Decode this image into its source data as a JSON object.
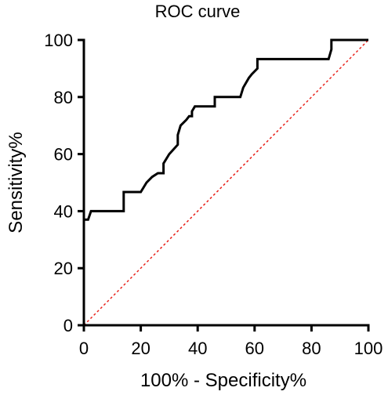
{
  "chart_data": {
    "type": "line",
    "title": "ROC curve",
    "xlabel": "100% - Specificity%",
    "ylabel": "Sensitivity%",
    "xlim": [
      0,
      100
    ],
    "ylim": [
      0,
      100
    ],
    "xticks": [
      0,
      20,
      40,
      60,
      80,
      100
    ],
    "yticks": [
      0,
      20,
      40,
      60,
      80,
      100
    ],
    "grid": false,
    "series": [
      {
        "color": "#000000",
        "style": "solid",
        "x": [
          0,
          0,
          1.5,
          2.5,
          2.5,
          14,
          14,
          20,
          22,
          24,
          26,
          28,
          28,
          30,
          33,
          33,
          34,
          36,
          37,
          38,
          38,
          39,
          39,
          46,
          46,
          55,
          56,
          56,
          58,
          59,
          61,
          61,
          86,
          87,
          87,
          100
        ],
        "y": [
          0,
          37,
          37,
          40,
          40,
          40,
          46.7,
          46.7,
          50,
          52,
          53.3,
          53.3,
          56.7,
          60,
          63.3,
          66.7,
          70,
          72,
          73.3,
          73.3,
          75,
          76.7,
          76.7,
          76.7,
          80,
          80,
          83.3,
          83.3,
          86.7,
          88,
          90,
          93.3,
          93.3,
          96.7,
          100,
          100
        ]
      },
      {
        "color": "#e8211a",
        "style": "dashed",
        "x": [
          0,
          100
        ],
        "y": [
          0,
          100
        ]
      }
    ]
  }
}
